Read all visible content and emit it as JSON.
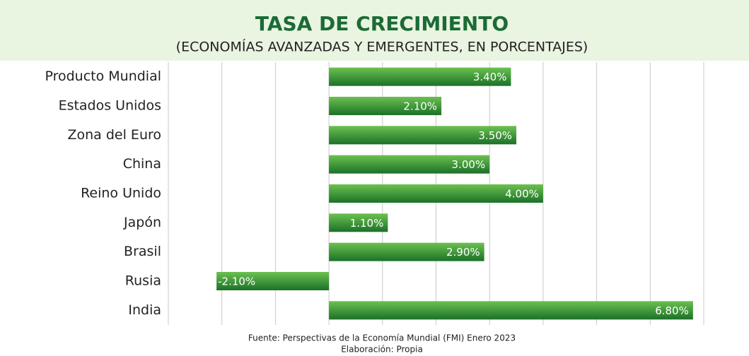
{
  "chart_data": {
    "type": "barh",
    "title": "TASA DE CRECIMIENTO",
    "subtitle": "(ECONOMÍAS AVANZADAS Y EMERGENTES, EN PORCENTAJES)",
    "categories": [
      "Producto Mundial",
      "Estados Unidos",
      "Zona del Euro",
      "China",
      "Reino Unido",
      "Japón",
      "Brasil",
      "Rusia",
      "India"
    ],
    "values": [
      3.4,
      2.1,
      3.5,
      3.0,
      4.0,
      1.1,
      2.9,
      -2.1,
      6.8
    ],
    "value_labels": [
      "3.40%",
      "2.10%",
      "3.50%",
      "3.00%",
      "4.00%",
      "1.10%",
      "2.90%",
      "-2.10%",
      "6.80%"
    ],
    "color": "#2e8b34",
    "xlim": [
      -3,
      7
    ],
    "xticks": [
      -3,
      -2,
      -1,
      0,
      1,
      2,
      3,
      4,
      5,
      6,
      7
    ],
    "grid": true,
    "notes": [
      "Fuente: Perspectivas de la Economía Mundial (FMI) Enero 2023",
      "Elaboración: Propia"
    ]
  }
}
